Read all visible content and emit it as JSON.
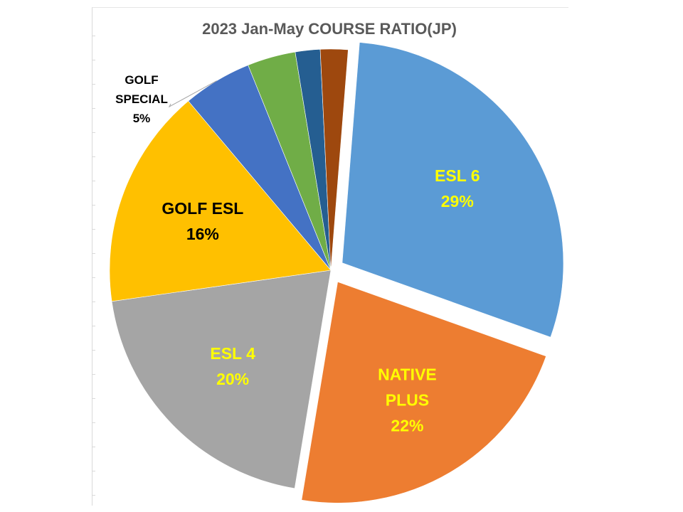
{
  "chart_data": {
    "type": "pie",
    "title": "2023 Jan-May COURSE RATIO(JP)",
    "slices": [
      {
        "lines": [
          "ESL 6",
          "29%"
        ],
        "value": 29,
        "color": "#5b9bd5",
        "label_color": "#ffff00",
        "exploded": true
      },
      {
        "lines": [
          "NATIVE",
          "PLUS",
          "22%"
        ],
        "value": 22,
        "color": "#ed7d31",
        "label_color": "#ffff00",
        "exploded": true
      },
      {
        "lines": [
          "ESL 4",
          "20%"
        ],
        "value": 20,
        "color": "#a5a5a5",
        "label_color": "#ffff00",
        "exploded": false
      },
      {
        "lines": [
          "GOLF ESL",
          "16%"
        ],
        "value": 16,
        "color": "#ffc000",
        "label_color": "#000000",
        "exploded": false
      },
      {
        "lines": [
          "GOLF",
          "SPECIAL",
          "5%"
        ],
        "value": 5,
        "color": "#4472c4",
        "label_color": "#000000",
        "exploded": false,
        "label_outside": true
      },
      {
        "lines": [],
        "value": 3.5,
        "color": "#70ad47",
        "exploded": false
      },
      {
        "lines": [],
        "value": 1.8,
        "color": "#255e91",
        "exploded": false
      },
      {
        "lines": [],
        "value": 2.0,
        "color": "#9e480e",
        "exploded": false
      }
    ]
  }
}
